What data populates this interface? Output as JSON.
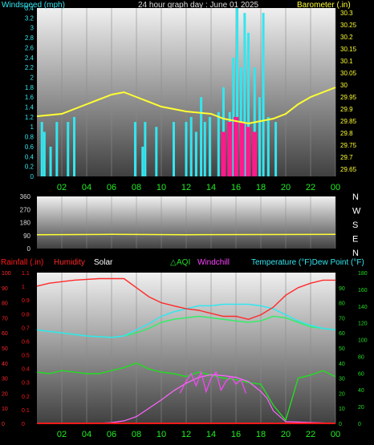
{
  "colors": {
    "wind": "#33e6f0",
    "wind_gust": "#ff1a8c",
    "baro": "#ffff33",
    "axis_left1": "#33e6f0",
    "axis_right1": "#ffff33",
    "rain": "#ff1a1a",
    "humidity": "#ff2a2a",
    "temp": "#33e6f0",
    "dew": "#33e6f0",
    "aqi": "#22dd22",
    "windchill": "#ff44ff",
    "solar": "#ff66ff",
    "panel_top": "#f0f0f0",
    "panel_bottom": "#404040",
    "hour_label": "#22ee22",
    "dir_label": "#ffffff"
  },
  "header": {
    "wind_title": "Windspeed (mph)",
    "graph_title": "24 hour graph day : June 01 2025",
    "baro_title": "Barometer (.in)"
  },
  "legend": {
    "rainfall": "Rainfall (.in)",
    "humidity": "Humidity",
    "solar": "Solar",
    "aqi": "AQI",
    "windchill": "Windchill",
    "temp_dew": "Temperature (°F)Dew Point (°F)"
  },
  "chart_data": [
    {
      "type": "line",
      "title": "24 hour graph day : June 01 2025",
      "ylabel": "Windspeed (mph)",
      "y2label": "Barometer (.in)",
      "x_ticks": [
        "02",
        "04",
        "06",
        "08",
        "10",
        "12",
        "14",
        "16",
        "18",
        "20",
        "22",
        "00"
      ],
      "ylim": [
        0,
        3.4
      ],
      "y_ticks": [
        "0",
        "0.2",
        "0.4",
        "0.6",
        "0.8",
        "1",
        "1.2",
        "1.4",
        "1.6",
        "1.8",
        "2",
        "2.2",
        "2.4",
        "2.6",
        "2.8",
        "3",
        "3.2",
        "3.4"
      ],
      "y2lim": [
        29.62,
        30.32
      ],
      "y2_ticks": [
        "29.65",
        "29.7",
        "29.75",
        "29.8",
        "29.85",
        "29.9",
        "29.95",
        "30",
        "30.05",
        "30.1",
        "30.15",
        "30.2",
        "30.25",
        "30.3"
      ],
      "series": [
        {
          "name": "Barometer",
          "x": [
            0,
            2,
            4,
            6,
            7,
            8,
            10,
            12,
            14,
            15,
            16,
            17,
            18,
            19,
            20,
            21,
            22,
            23,
            24
          ],
          "y": [
            29.87,
            29.88,
            29.92,
            29.96,
            29.97,
            29.95,
            29.91,
            29.89,
            29.88,
            29.86,
            29.85,
            29.84,
            29.85,
            29.86,
            29.88,
            29.92,
            29.95,
            29.97,
            29.99
          ]
        },
        {
          "name": "Windspeed",
          "x": [
            0.4,
            0.6,
            1.1,
            1.6,
            2.5,
            3.0,
            7.9,
            8.5,
            8.7,
            9.6,
            11.0,
            12.0,
            12.4,
            12.8,
            13.2,
            13.5,
            13.9,
            14.6,
            15.0,
            15.5,
            15.8,
            16.1,
            16.4,
            16.7,
            17.0,
            17.5,
            17.9,
            18.2,
            18.6,
            19.2
          ],
          "y": [
            1.1,
            0.9,
            0.6,
            1.1,
            1.1,
            1.2,
            1.1,
            0.6,
            1.1,
            1.0,
            1.1,
            1.1,
            1.2,
            0.9,
            1.6,
            1.1,
            1.2,
            1.3,
            1.8,
            1.3,
            2.4,
            3.4,
            2.2,
            3.3,
            2.9,
            2.2,
            1.6,
            3.3,
            1.2,
            1.1
          ]
        },
        {
          "name": "Gust",
          "x": [
            15.0,
            15.5,
            16.0,
            16.5,
            17.0,
            17.5
          ],
          "y": [
            0.9,
            1.1,
            1.2,
            1.1,
            1.0,
            0.9
          ]
        }
      ]
    },
    {
      "type": "line",
      "ylabel": "Wind direction",
      "ylim": [
        0,
        360
      ],
      "y_ticks": [
        "0",
        "90",
        "180",
        "270",
        "360"
      ],
      "dir_labels": [
        "N",
        "W",
        "S",
        "E",
        "N"
      ],
      "series": [
        {
          "name": "Direction",
          "x": [
            0,
            6,
            12,
            18,
            24
          ],
          "y": [
            95,
            98,
            96,
            97,
            98
          ]
        }
      ]
    },
    {
      "type": "line",
      "x_ticks": [
        "02",
        "04",
        "06",
        "08",
        "10",
        "12",
        "14",
        "16",
        "18",
        "20",
        "22",
        "00"
      ],
      "ylim_humidity": [
        0,
        100
      ],
      "humidity_ticks": [
        "0",
        "10",
        "20",
        "30",
        "40",
        "50",
        "60",
        "70",
        "80",
        "90",
        "100"
      ],
      "ylim_rain": [
        0,
        1.1
      ],
      "rain_ticks": [
        "0",
        "0.1",
        "0.2",
        "0.3",
        "0.4",
        "0.5",
        "0.6",
        "0.7",
        "0.8",
        "0.9",
        "1",
        "1.1"
      ],
      "ylim_temp": [
        0,
        100
      ],
      "temp_ticks": [
        "0",
        "10",
        "20",
        "30",
        "40",
        "50",
        "60",
        "70",
        "80",
        "90"
      ],
      "ylim_solar": [
        0,
        180
      ],
      "solar_ticks": [
        "0",
        "20",
        "40",
        "60",
        "80",
        "100",
        "120",
        "140",
        "160",
        "180"
      ],
      "series": [
        {
          "name": "Humidity",
          "x": [
            0,
            1,
            3,
            5,
            6,
            7,
            8,
            9,
            10,
            11,
            12,
            13,
            14,
            15,
            16,
            17,
            18,
            19,
            20,
            21,
            22,
            23,
            24
          ],
          "y": [
            91,
            93,
            95,
            96,
            96,
            96,
            90,
            84,
            80,
            78,
            76,
            75,
            73,
            71,
            71,
            69,
            72,
            77,
            85,
            90,
            93,
            95,
            95
          ]
        },
        {
          "name": "Temperature",
          "x": [
            0,
            2,
            4,
            6,
            7,
            8,
            9,
            10,
            11,
            12,
            13,
            14,
            15,
            16,
            17,
            18,
            19,
            20,
            21,
            22,
            23,
            24
          ],
          "y": [
            62,
            60,
            58,
            57,
            58,
            60,
            63,
            67,
            69,
            70,
            71,
            70,
            69,
            68,
            67,
            68,
            71,
            70,
            67,
            64,
            63,
            62
          ]
        },
        {
          "name": "Dew Point",
          "x": [
            0,
            2,
            4,
            6,
            7,
            8,
            9,
            10,
            11,
            12,
            13,
            14,
            15,
            16,
            17,
            18,
            19,
            20,
            21,
            22,
            23,
            24
          ],
          "y": [
            62,
            60,
            58,
            57,
            58,
            62,
            66,
            71,
            74,
            76,
            78,
            78,
            79,
            79,
            79,
            78,
            76,
            72,
            68,
            65,
            63,
            62
          ]
        },
        {
          "name": "AQI",
          "x": [
            0,
            1,
            2,
            3,
            4,
            5,
            6,
            7,
            8,
            9,
            10,
            11,
            12,
            13,
            14,
            15,
            16,
            17,
            18,
            19,
            20,
            21,
            22,
            23,
            24
          ],
          "y": [
            34,
            33,
            35,
            34,
            33,
            33,
            35,
            37,
            40,
            36,
            34,
            33,
            31,
            34,
            32,
            30,
            29,
            27,
            26,
            12,
            2,
            30,
            32,
            35,
            31
          ]
        },
        {
          "name": "Windchill",
          "x": [
            11.5,
            12,
            12.4,
            12.8,
            13.2,
            13.6,
            14,
            14.4,
            14.8,
            15.2,
            15.6,
            16,
            16.4,
            16.8
          ],
          "y": [
            20,
            28,
            33,
            25,
            34,
            21,
            30,
            34,
            22,
            28,
            31,
            26,
            29,
            20
          ]
        },
        {
          "name": "Solar",
          "x": [
            0,
            5,
            6,
            7,
            8,
            9,
            10,
            11,
            12,
            13,
            14,
            15,
            16,
            17,
            18,
            18.5,
            19,
            20,
            24
          ],
          "y": [
            0,
            0,
            1,
            3,
            8,
            18,
            28,
            39,
            48,
            55,
            58,
            57,
            55,
            50,
            38,
            30,
            15,
            2,
            0
          ]
        },
        {
          "name": "Rainfall",
          "x": [
            0,
            24
          ],
          "y": [
            0,
            0
          ]
        }
      ]
    }
  ]
}
